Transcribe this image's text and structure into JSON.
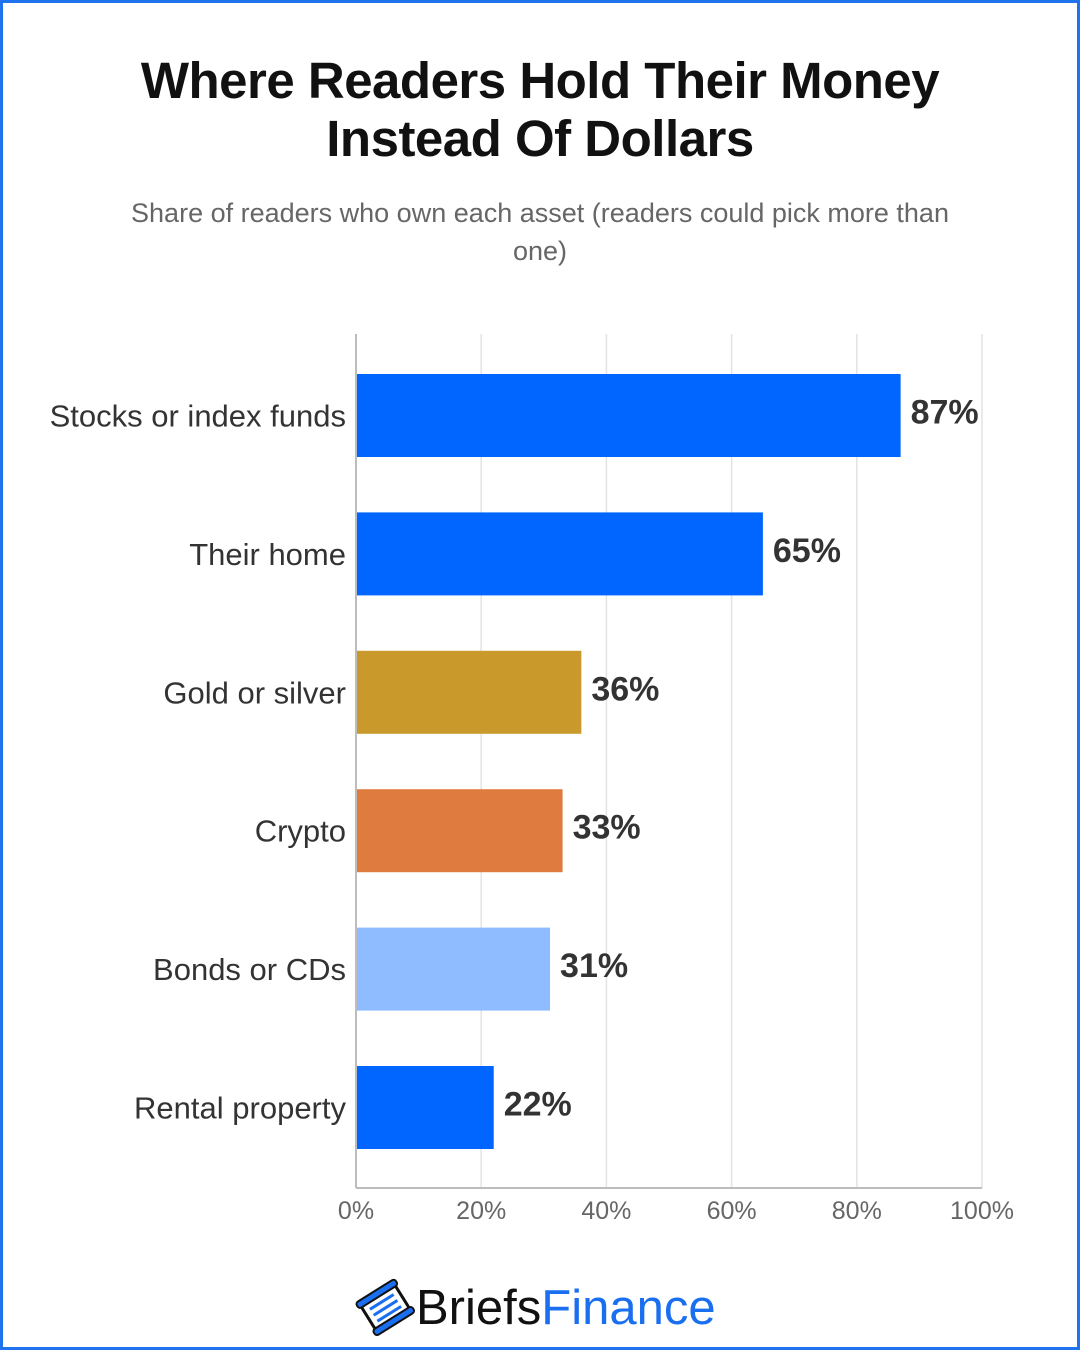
{
  "title_lines": [
    "Where Readers Hold Their Money",
    "Instead Of Dollars"
  ],
  "subtitle": "Share of readers who own each asset (readers could pick more than one)",
  "colors": {
    "frame": "#1f74ee",
    "gridline": "#e3e3e3",
    "axis": "#bdbdbd"
  },
  "chart_data": {
    "type": "bar",
    "orientation": "horizontal",
    "categories": [
      "Stocks or index funds",
      "Their home",
      "Gold or silver",
      "Crypto",
      "Bonds or CDs",
      "Rental property"
    ],
    "values": [
      87,
      65,
      36,
      33,
      31,
      22
    ],
    "value_labels": [
      "87%",
      "65%",
      "36%",
      "33%",
      "31%",
      "22%"
    ],
    "bar_colors": [
      "#0066ff",
      "#0066ff",
      "#c9992c",
      "#e07b3f",
      "#8fbcff",
      "#0066ff"
    ],
    "xlim": [
      0,
      100
    ],
    "xticks": [
      0,
      20,
      40,
      60,
      80,
      100
    ],
    "xtick_labels": [
      "0%",
      "20%",
      "40%",
      "60%",
      "80%",
      "100%"
    ],
    "grid": true,
    "legend": "none"
  },
  "logo": {
    "icon": "piggy-bank-icon",
    "word1": "Briefs",
    "word2": "Finance"
  }
}
